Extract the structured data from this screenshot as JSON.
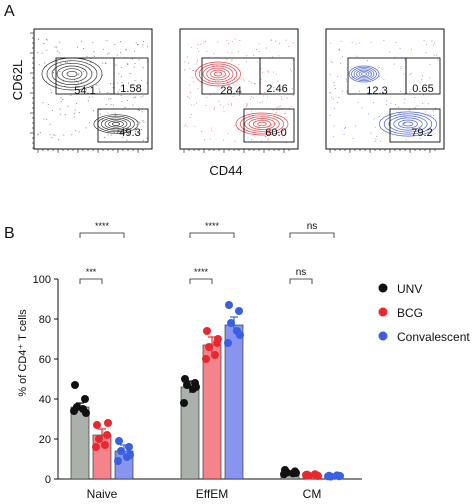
{
  "panels": {
    "a": "A",
    "b": "B"
  },
  "flow": {
    "y_axis_label": "CD62L",
    "x_axis_label": "CD44",
    "plots": [
      {
        "color": "#111111",
        "gates": [
          "54.1",
          "1.58",
          "49.3"
        ]
      },
      {
        "color": "#d6232a",
        "gates": [
          "28.4",
          "2.46",
          "60.0"
        ]
      },
      {
        "color": "#2a45c4",
        "gates": [
          "12.3",
          "0.65",
          "79.2"
        ]
      }
    ]
  },
  "chart_data": {
    "type": "bar",
    "ylabel": "% of CD4⁺ T cells",
    "xlabel": "",
    "ylim": [
      0,
      100
    ],
    "yticks": [
      "0",
      "20",
      "40",
      "60",
      "80",
      "100"
    ],
    "categories": [
      "Naive",
      "EffEM",
      "CM"
    ],
    "series": [
      {
        "name": "UNV",
        "color": "#111111",
        "bar_color": "#a9b1aa",
        "values": [
          36,
          46,
          3
        ],
        "errors": [
          2,
          3,
          0.6
        ],
        "points": [
          [
            47,
            40,
            36,
            35,
            34,
            33
          ],
          [
            50,
            48,
            47,
            45,
            38,
            46
          ],
          [
            4.5,
            3.8,
            3.2,
            2.8,
            2.4,
            3.0
          ]
        ]
      },
      {
        "name": "BCG",
        "color": "#e8272e",
        "bar_color": "#f4838c",
        "values": [
          22,
          67,
          2
        ],
        "errors": [
          3,
          4,
          0.4
        ],
        "points": [
          [
            27,
            22,
            20,
            17,
            16,
            28
          ],
          [
            74,
            68,
            66,
            62,
            60,
            70
          ],
          [
            2.2,
            1.8,
            1.6,
            2.4,
            2.0,
            1.5
          ]
        ]
      },
      {
        "name": "Convalescent",
        "color": "#3a5fe0",
        "bar_color": "#8794f0",
        "values": [
          14,
          77,
          1.5
        ],
        "errors": [
          3,
          4,
          0.3
        ],
        "points": [
          [
            19,
            16,
            14,
            11,
            9,
            12
          ],
          [
            87,
            84,
            78,
            74,
            68,
            72
          ],
          [
            1.6,
            1.4,
            1.2,
            1.8,
            1.3,
            1.5
          ]
        ]
      }
    ],
    "significance": [
      {
        "category": "Naive",
        "label": "****",
        "span": "UNV-Convalescent"
      },
      {
        "category": "Naive",
        "label": "***",
        "span": "UNV-BCG"
      },
      {
        "category": "EffEM",
        "label": "****",
        "span": "UNV-Convalescent"
      },
      {
        "category": "EffEM",
        "label": "****",
        "span": "UNV-BCG"
      },
      {
        "category": "CM",
        "label": "ns",
        "span": "UNV-Convalescent"
      },
      {
        "category": "CM",
        "label": "ns",
        "span": "UNV-BCG"
      }
    ],
    "legend_position": "right"
  }
}
